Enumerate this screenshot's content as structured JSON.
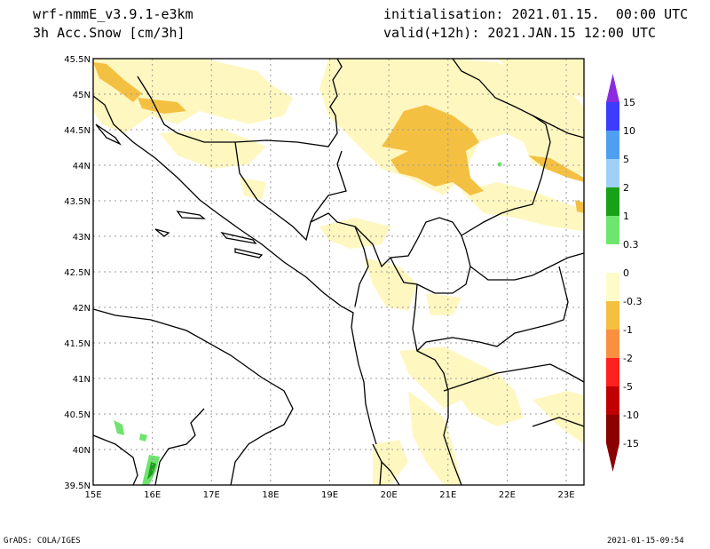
{
  "header": {
    "model": "wrf-nmmE_v3.9.1-e3km",
    "field": "3h Acc.Snow [cm/3h]",
    "init": "initialisation: 2021.01.15.  00:00 UTC",
    "valid": "valid(+12h): 2021.JAN.15 12:00 UTC"
  },
  "axes": {
    "lon_labels": [
      "15E",
      "16E",
      "17E",
      "18E",
      "19E",
      "20E",
      "21E",
      "22E",
      "23E"
    ],
    "lat_labels": [
      "45.5N",
      "45N",
      "44.5N",
      "44N",
      "43.5N",
      "43N",
      "42.5N",
      "42N",
      "41.5N",
      "41N",
      "40.5N",
      "40N",
      "39.5N"
    ],
    "lon_range": [
      15,
      23.3
    ],
    "lat_range": [
      39.5,
      45.5
    ]
  },
  "colorbar": {
    "labels": [
      "15",
      "10",
      "5",
      "2",
      "1",
      "0.3",
      "0",
      "-0.3",
      "-1",
      "-2",
      "-5",
      "-10",
      "-15"
    ],
    "colors": [
      "#8a2be2",
      "#3c3cff",
      "#4f9ff0",
      "#a0d0f8",
      "#18a018",
      "#6ee66e",
      "#ffffff",
      "#fffbc8",
      "#f5c040",
      "#f89040",
      "#ff2020",
      "#c00000",
      "#8b0000"
    ]
  },
  "footer": {
    "left": "GrADS: COLA/IGES",
    "right": "2021-01-15-09:54"
  },
  "palette": {
    "light_snow": "#fff7c0",
    "moderate_snow": "#f4c042",
    "green_light": "#6fe36f",
    "green_dark": "#1aa21a"
  }
}
